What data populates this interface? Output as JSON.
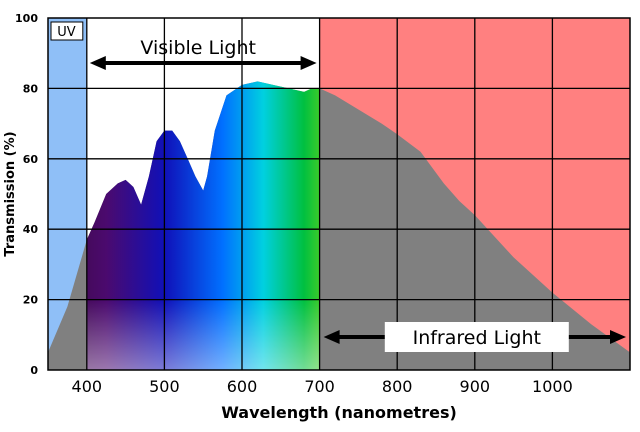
{
  "chart_data": {
    "type": "area",
    "title": "",
    "xlabel": "Wavelength (nanometres)",
    "ylabel": "Transmission (%)",
    "xlim": [
      350,
      1100
    ],
    "ylim": [
      0,
      100
    ],
    "x_ticks": [
      400,
      500,
      600,
      700,
      800,
      900,
      1000
    ],
    "y_ticks": [
      0,
      20,
      40,
      60,
      80,
      100
    ],
    "grid": true,
    "bands": [
      {
        "label": "UV",
        "from": 350,
        "to": 400,
        "color": "#8fbff7"
      },
      {
        "label": "Visible Light",
        "from": 400,
        "to": 700,
        "color": "#ffffff"
      },
      {
        "label": "Infrared Light",
        "from": 700,
        "to": 1100,
        "color": "#ff8080"
      }
    ],
    "curve_color": "#808080",
    "series": [
      {
        "x": [
          350,
          375,
          400,
          410,
          425,
          440,
          450,
          460,
          470,
          480,
          490,
          500,
          510,
          520,
          530,
          540,
          550,
          555,
          565,
          580,
          600,
          620,
          640,
          660,
          680,
          690,
          700,
          720,
          750,
          780,
          800,
          830,
          860,
          880,
          900,
          950,
          1000,
          1050,
          1100
        ],
        "y": [
          5,
          18,
          37,
          42,
          50,
          53,
          54,
          52,
          47,
          55,
          65,
          68,
          68,
          65,
          60,
          55,
          51,
          55,
          68,
          78,
          81,
          82,
          81,
          80,
          79,
          80,
          80,
          78,
          74,
          70,
          67,
          62,
          53,
          48,
          44,
          32,
          22,
          13,
          5
        ]
      }
    ]
  }
}
